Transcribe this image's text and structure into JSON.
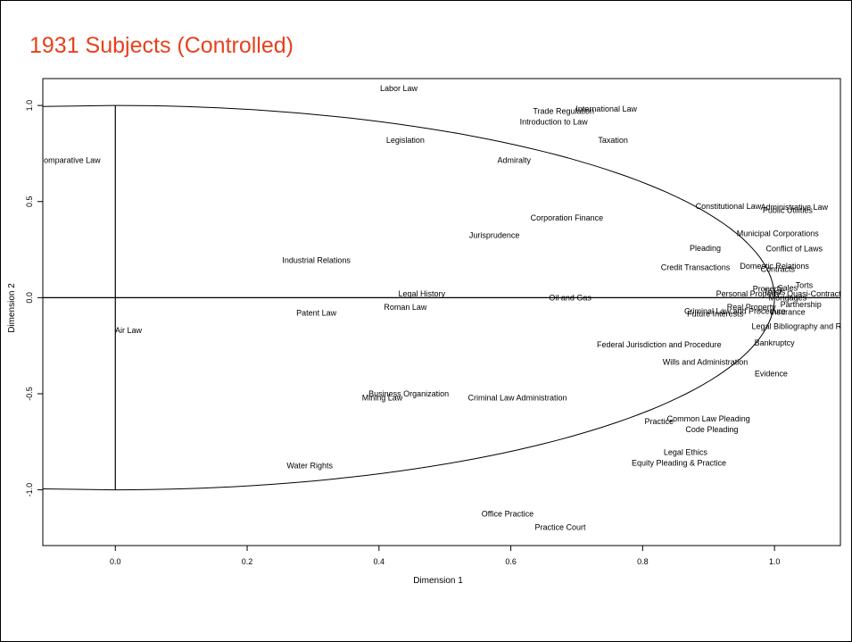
{
  "slide": {
    "title": "1931 Subjects (Controlled)"
  },
  "chart_data": {
    "type": "scatter",
    "title": "",
    "xlabel": "Dimension 1",
    "ylabel": "Dimension 2",
    "xlim": [
      -0.11,
      1.1
    ],
    "ylim": [
      -1.29,
      1.14
    ],
    "x_ticks": [
      "0.0",
      "0.2",
      "0.4",
      "0.6",
      "0.8",
      "1.0"
    ],
    "y_ticks": [
      "-1.0",
      "-0.5",
      "0.0",
      "0.5",
      "1.0"
    ],
    "grid": false,
    "legend": "none",
    "axis_lines": {
      "horizontal_y": 0.0,
      "vertical_x": 0.0,
      "vertical_range": [
        -1.0,
        1.0
      ]
    },
    "curve_color": "#000000",
    "label_color": "#000000",
    "points": [
      {
        "label": "Labor Law",
        "x": 0.43,
        "y": 1.09
      },
      {
        "label": "International Law",
        "x": 0.745,
        "y": 0.983
      },
      {
        "label": "Trade Regulation",
        "x": 0.68,
        "y": 0.97
      },
      {
        "label": "Introduction to Law",
        "x": 0.665,
        "y": 0.915
      },
      {
        "label": "Legislation",
        "x": 0.44,
        "y": 0.82
      },
      {
        "label": "Taxation",
        "x": 0.755,
        "y": 0.82
      },
      {
        "label": "Comparative Law",
        "x": -0.07,
        "y": 0.715
      },
      {
        "label": "Admiralty",
        "x": 0.605,
        "y": 0.715
      },
      {
        "label": "Constitutional Law",
        "x": 0.93,
        "y": 0.475
      },
      {
        "label": "Administrative Law",
        "x": 1.03,
        "y": 0.47
      },
      {
        "label": "Public Utilities",
        "x": 1.02,
        "y": 0.455
      },
      {
        "label": "Corporation Finance",
        "x": 0.685,
        "y": 0.415
      },
      {
        "label": "Municipal Corporations",
        "x": 1.005,
        "y": 0.335
      },
      {
        "label": "Jurisprudence",
        "x": 0.575,
        "y": 0.325
      },
      {
        "label": "Pleading",
        "x": 0.895,
        "y": 0.258
      },
      {
        "label": "Conflict of Laws",
        "x": 1.03,
        "y": 0.255
      },
      {
        "label": "Industrial Relations",
        "x": 0.305,
        "y": 0.195
      },
      {
        "label": "Credit Transactions",
        "x": 0.88,
        "y": 0.158
      },
      {
        "label": "Domestic Relations",
        "x": 1.0,
        "y": 0.165
      },
      {
        "label": "Contracts",
        "x": 1.005,
        "y": 0.148
      },
      {
        "label": "Torts",
        "x": 1.045,
        "y": 0.065
      },
      {
        "label": "Sales",
        "x": 1.02,
        "y": 0.05
      },
      {
        "label": "Property",
        "x": 0.99,
        "y": 0.045
      },
      {
        "label": "Trusts",
        "x": 1.0,
        "y": 0.03
      },
      {
        "label": "Quasi-Contract",
        "x": 1.06,
        "y": 0.02
      },
      {
        "label": "Personal Property",
        "x": 0.96,
        "y": 0.02
      },
      {
        "label": "Legal History",
        "x": 0.465,
        "y": 0.02
      },
      {
        "label": "Oil and Gas",
        "x": 0.69,
        "y": 0.0
      },
      {
        "label": "Mortgages",
        "x": 1.02,
        "y": 0.0
      },
      {
        "label": "Partnership",
        "x": 1.04,
        "y": -0.035
      },
      {
        "label": "Roman Law",
        "x": 0.44,
        "y": -0.05
      },
      {
        "label": "Real Property",
        "x": 0.965,
        "y": -0.05
      },
      {
        "label": "Criminal Law and Procedure",
        "x": 0.94,
        "y": -0.07
      },
      {
        "label": "Insurance",
        "x": 1.02,
        "y": -0.075
      },
      {
        "label": "Future Interests",
        "x": 0.91,
        "y": -0.085
      },
      {
        "label": "Patent Law",
        "x": 0.305,
        "y": -0.08
      },
      {
        "label": "Air Law",
        "x": 0.02,
        "y": -0.17
      },
      {
        "label": "Legal Bibliography and Research",
        "x": 1.055,
        "y": -0.15
      },
      {
        "label": "Bankruptcy",
        "x": 1.0,
        "y": -0.235
      },
      {
        "label": "Federal Jurisdiction and Procedure",
        "x": 0.825,
        "y": -0.245
      },
      {
        "label": "Wills and Administration",
        "x": 0.895,
        "y": -0.335
      },
      {
        "label": "Evidence",
        "x": 0.995,
        "y": -0.395
      },
      {
        "label": "Business Organization",
        "x": 0.445,
        "y": -0.5
      },
      {
        "label": "Mining Law",
        "x": 0.405,
        "y": -0.52
      },
      {
        "label": "Criminal Law Administration",
        "x": 0.61,
        "y": -0.52
      },
      {
        "label": "Common Law Pleading",
        "x": 0.9,
        "y": -0.63
      },
      {
        "label": "Practice",
        "x": 0.825,
        "y": -0.645
      },
      {
        "label": "Code Pleading",
        "x": 0.905,
        "y": -0.685
      },
      {
        "label": "Legal Ethics",
        "x": 0.865,
        "y": -0.805
      },
      {
        "label": "Equity Pleading & Practice",
        "x": 0.855,
        "y": -0.86
      },
      {
        "label": "Water Rights",
        "x": 0.295,
        "y": -0.875
      },
      {
        "label": "Office Practice",
        "x": 0.595,
        "y": -1.125
      },
      {
        "label": "Practice Court",
        "x": 0.675,
        "y": -1.195
      }
    ]
  }
}
